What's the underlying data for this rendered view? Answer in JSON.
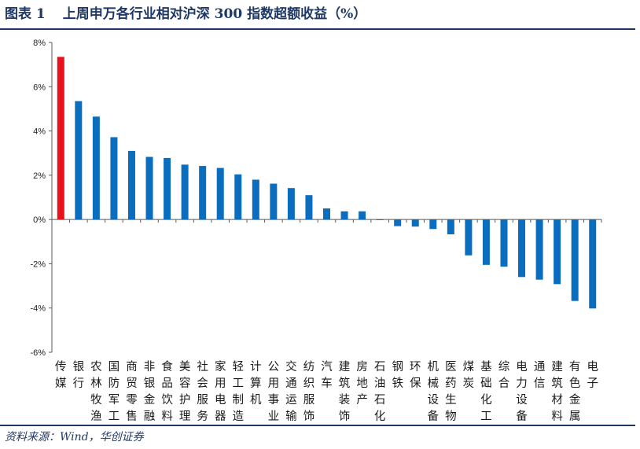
{
  "header": {
    "figure_no": "图表 1",
    "title": "上周申万各行业相对沪深 300 指数超额收益（%）"
  },
  "footer": {
    "source": "资料来源：Wind，华创证券"
  },
  "colors": {
    "highlight": "#e8121c",
    "bar": "#0b6dbd",
    "axis": "#595959",
    "accent": "#1f3864"
  },
  "chart_data": {
    "type": "bar",
    "title": "上周申万各行业相对沪深 300 指数超额收益（%）",
    "ylim": [
      -6,
      8
    ],
    "yticks": [
      -6,
      -4,
      -2,
      0,
      2,
      4,
      6,
      8
    ],
    "ytick_labels": [
      "-6%",
      "-4%",
      "-2%",
      "0%",
      "2%",
      "4%",
      "6%",
      "8%"
    ],
    "grid": false,
    "legend": "none",
    "categories": [
      "传媒",
      "银行",
      "农林牧渔",
      "国防军工",
      "商贸零售",
      "非银金融",
      "食品饮料",
      "美容护理",
      "社会服务",
      "家用电器",
      "轻工制造",
      "计算机",
      "公用事业",
      "交通运输",
      "纺织服饰",
      "汽车",
      "建筑装饰",
      "房地产",
      "石油石化",
      "钢铁",
      "环保",
      "机械设备",
      "医药生物",
      "煤炭",
      "基础化工",
      "综合",
      "电力设备",
      "通信",
      "建筑材料",
      "有色金属",
      "电子"
    ],
    "values": [
      7.35,
      5.35,
      4.65,
      3.72,
      3.1,
      2.83,
      2.78,
      2.48,
      2.42,
      2.33,
      2.04,
      1.8,
      1.62,
      1.42,
      1.1,
      0.5,
      0.37,
      0.37,
      -0.03,
      -0.3,
      -0.32,
      -0.43,
      -0.67,
      -1.62,
      -2.05,
      -2.13,
      -2.6,
      -2.72,
      -2.92,
      -3.68,
      -4.02
    ],
    "highlight_index": 0
  }
}
